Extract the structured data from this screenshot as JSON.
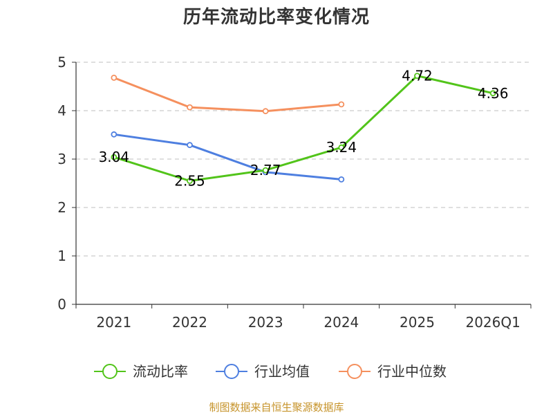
{
  "chart_data": {
    "type": "line",
    "title": "历年流动比率变化情况",
    "categories": [
      "2021",
      "2022",
      "2023",
      "2024",
      "2025",
      "2026Q1"
    ],
    "ylim": [
      0,
      5
    ],
    "yticks": [
      "0",
      "1",
      "2",
      "3",
      "4",
      "5"
    ],
    "grid": true,
    "legend_position": "bottom",
    "series": [
      {
        "name": "流动比率",
        "color": "#52c41a",
        "values": [
          3.04,
          2.55,
          2.77,
          3.24,
          4.72,
          4.36
        ],
        "labels": [
          "3.04",
          "2.55",
          "2.77",
          "3.24",
          "4.72",
          "4.36"
        ]
      },
      {
        "name": "行业均值",
        "color": "#4e7fe0",
        "values": [
          3.51,
          3.29,
          2.73,
          2.58,
          null,
          null
        ]
      },
      {
        "name": "行业中位数",
        "color": "#f5905e",
        "values": [
          4.68,
          4.07,
          3.99,
          4.13,
          null,
          null
        ]
      }
    ]
  },
  "source": "制图数据来自恒生聚源数据库"
}
